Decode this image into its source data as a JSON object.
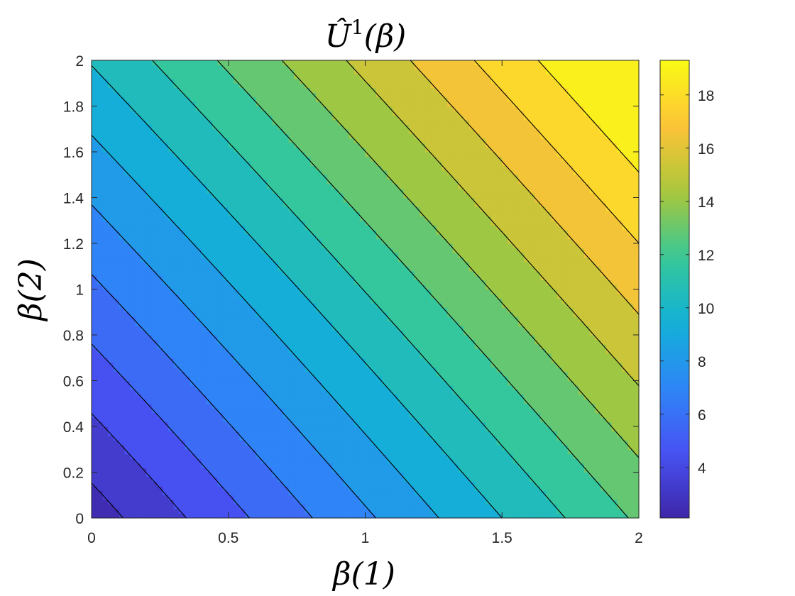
{
  "chart_data": {
    "type": "contourf",
    "title": "Û¹(β)",
    "title_parts": {
      "base": "Û",
      "sup": "1",
      "arg": "(β)"
    },
    "xlabel": "β(1)",
    "ylabel": "β(2)",
    "xlim": [
      0,
      2
    ],
    "ylim": [
      0,
      2
    ],
    "xticks": [
      "0",
      "0.5",
      "1",
      "1.5",
      "2"
    ],
    "yticks": [
      "0",
      "0.2",
      "0.4",
      "0.6",
      "0.8",
      "1",
      "1.2",
      "1.4",
      "1.6",
      "1.8",
      "2"
    ],
    "colorbar": {
      "limits": [
        2.1,
        19.3
      ],
      "ticks": [
        "4",
        "6",
        "8",
        "10",
        "12",
        "14",
        "16",
        "18"
      ],
      "colormap": "parula"
    },
    "contour_levels": [
      2.7,
      3.9,
      5.1,
      6.3,
      7.5,
      8.7,
      9.9,
      11.1,
      12.3,
      13.5,
      14.7,
      15.9,
      17.1,
      18.3
    ],
    "grid": false,
    "contour_line_color": "#000000"
  }
}
